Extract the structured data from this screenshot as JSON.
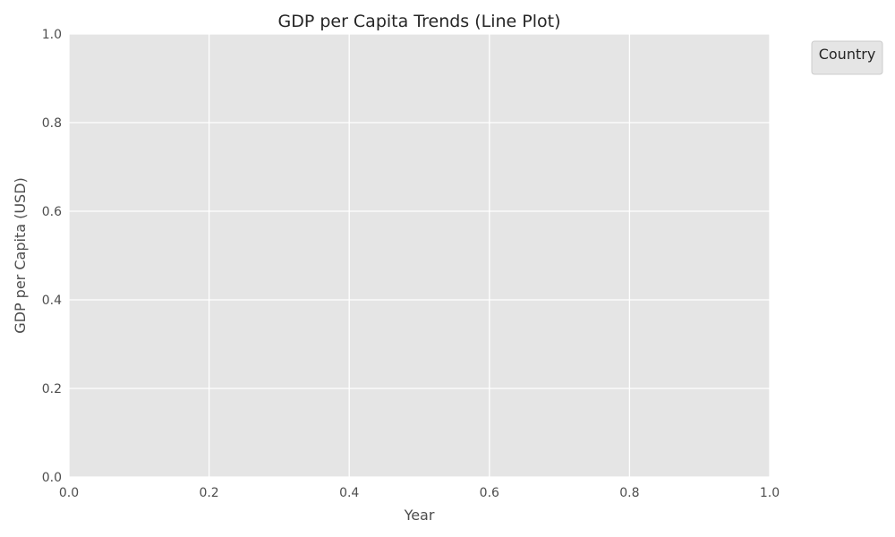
{
  "chart_data": {
    "type": "line",
    "title": "GDP per Capita Trends (Line Plot)",
    "xlabel": "Year",
    "ylabel": "GDP per Capita (USD)",
    "xlim": [
      0.0,
      1.0
    ],
    "ylim": [
      0.0,
      1.0
    ],
    "xticks": [
      "0.0",
      "0.2",
      "0.4",
      "0.6",
      "0.8",
      "1.0"
    ],
    "yticks": [
      "0.0",
      "0.2",
      "0.4",
      "0.6",
      "0.8",
      "1.0"
    ],
    "series": [],
    "grid": true,
    "legend": {
      "title": "Country",
      "placement": "outside-top-right",
      "entries": []
    },
    "colors": {
      "plot_background": "#e5e5e5",
      "grid": "#ffffff",
      "text": "#4d4d4d",
      "title_text": "#262626"
    }
  }
}
